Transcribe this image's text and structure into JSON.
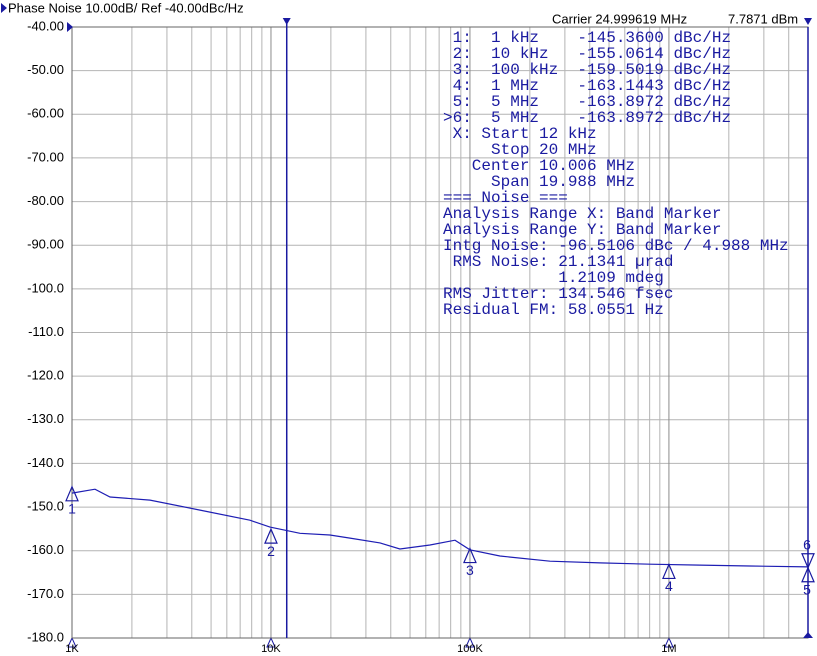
{
  "chart_data": {
    "type": "line",
    "log_x": true,
    "grid": true,
    "title": "Phase Noise 10.00dB/ Ref -40.00dBc/Hz",
    "carrier": "Carrier 24.999619 MHz",
    "power": "7.7871 dBm",
    "xlim": [
      1000,
      5000000
    ],
    "ylim": [
      -180,
      -40
    ],
    "xticks": [
      {
        "value": 1000,
        "label": "1K"
      },
      {
        "value": 10000,
        "label": "10K"
      },
      {
        "value": 100000,
        "label": "100K"
      },
      {
        "value": 1000000,
        "label": "1M"
      }
    ],
    "x_minor_ticks": [
      2000,
      3000,
      4000,
      5000,
      6000,
      7000,
      8000,
      9000,
      20000,
      30000,
      40000,
      50000,
      60000,
      70000,
      80000,
      90000,
      200000,
      300000,
      400000,
      500000,
      600000,
      700000,
      800000,
      900000,
      2000000,
      3000000,
      4000000
    ],
    "yticks": [
      {
        "value": -40,
        "label": "-40.00"
      },
      {
        "value": -50,
        "label": "-50.00"
      },
      {
        "value": -60,
        "label": "-60.00"
      },
      {
        "value": -70,
        "label": "-70.00"
      },
      {
        "value": -80,
        "label": "-80.00"
      },
      {
        "value": -90,
        "label": "-90.00"
      },
      {
        "value": -100,
        "label": "-100.0"
      },
      {
        "value": -110,
        "label": "-110.0"
      },
      {
        "value": -120,
        "label": "-120.0"
      },
      {
        "value": -130,
        "label": "-130.0"
      },
      {
        "value": -140,
        "label": "-140.0"
      },
      {
        "value": -150,
        "label": "-150.0"
      },
      {
        "value": -160,
        "label": "-160.0"
      },
      {
        "value": -170,
        "label": "-170.0"
      },
      {
        "value": -180,
        "label": "-180.0"
      }
    ],
    "band_markers": [
      12000
    ],
    "series": [
      {
        "color": "#1e1eb4",
        "x": [
          1000,
          1305,
          1552,
          2466,
          4398,
          7838,
          9886,
          13990,
          19770,
          24950,
          35300,
          44470,
          62950,
          84100,
          100000,
          141500,
          252400,
          449900,
          803000,
          1432000,
          2554000,
          5000000
        ],
        "values": [
          -146.8,
          -145.9,
          -147.7,
          -148.4,
          -150.7,
          -153,
          -154.6,
          -156,
          -156.4,
          -157.1,
          -158.2,
          -159.6,
          -158.7,
          -157.6,
          -159.8,
          -161.2,
          -162.4,
          -162.8,
          -163.1,
          -163.3,
          -163.5,
          -163.7
        ]
      }
    ],
    "markers": [
      {
        "label": "1",
        "x": 1000,
        "value": -145.36
      },
      {
        "label": "2",
        "x": 10000,
        "value": -155.0614
      },
      {
        "label": "3",
        "x": 100000,
        "value": -159.5019
      },
      {
        "label": "4",
        "x": 1000000,
        "value": -163.1443
      },
      {
        "label": "5",
        "x": 5000000,
        "value": -163.8972
      },
      {
        "label": "6",
        "x": 5000000,
        "value": -163.8972
      }
    ],
    "info_lines": [
      " 1:  1 kHz    -145.3600 dBc/Hz",
      " 2:  10 kHz   -155.0614 dBc/Hz",
      " 3:  100 kHz  -159.5019 dBc/Hz",
      " 4:  1 MHz    -163.1443 dBc/Hz",
      " 5:  5 MHz    -163.8972 dBc/Hz",
      ">6:  5 MHz    -163.8972 dBc/Hz",
      " X: Start 12 kHz",
      "     Stop 20 MHz",
      "   Center 10.006 MHz",
      "     Span 19.988 MHz",
      "=== Noise ===",
      "Analysis Range X: Band Marker",
      "Analysis Range Y: Band Marker",
      "Intg Noise: -96.5106 dBc / 4.988 MHz",
      " RMS Noise: 21.1341 µrad",
      "            1.2109 mdeg",
      "RMS Jitter: 134.546 fsec",
      "Residual FM: 58.0551 Hz"
    ]
  }
}
